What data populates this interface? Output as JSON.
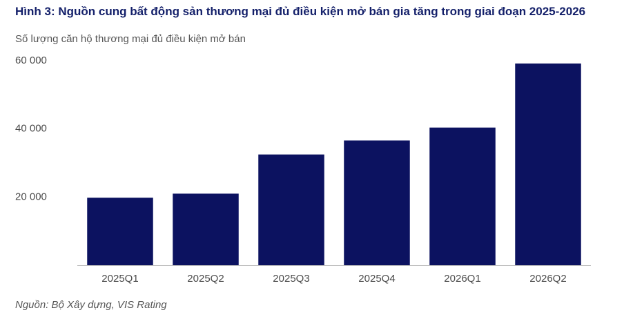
{
  "header": {
    "title": "Hình 3: Nguồn cung bất động sản thương mại đủ điều kiện mở bán gia tăng trong giai đoạn 2025-2026",
    "ylabel": "Số lượng căn hộ thương mại đủ điều kiện mở bán"
  },
  "footer": {
    "source": "Nguồn: Bộ Xây dựng, VIS Rating"
  },
  "chart_data": {
    "type": "bar",
    "title": "Hình 3: Nguồn cung bất động sản thương mại đủ điều kiện mở bán gia tăng trong giai đoạn 2025-2026",
    "ylabel": "Số lượng căn hộ thương mại đủ điều kiện mở bán",
    "xlabel": "",
    "categories": [
      "2025Q1",
      "2025Q2",
      "2025Q3",
      "2025Q4",
      "2026Q1",
      "2026Q2"
    ],
    "values": [
      19800,
      21000,
      32500,
      36600,
      40400,
      59200
    ],
    "ylim": [
      0,
      60000
    ],
    "yticks": [
      20000,
      40000,
      60000
    ],
    "ytick_labels": [
      "20 000",
      "40 000",
      "60 000"
    ],
    "grid": false,
    "legend": "none",
    "bar_color": "#0c1260"
  }
}
